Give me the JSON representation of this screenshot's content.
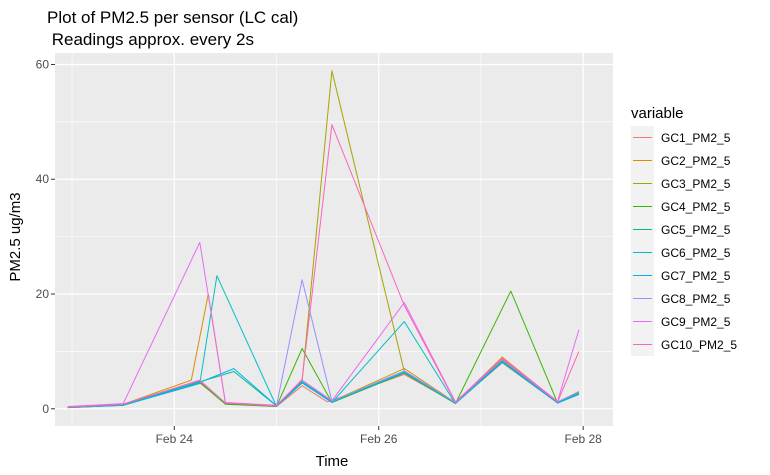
{
  "chart_data": {
    "type": "line",
    "title": "Plot of PM2.5 per sensor (LC cal)",
    "subtitle": " Readings approx. every 2s",
    "xlabel": "Time",
    "ylabel": "PM2.5 ug/m3",
    "xlim": [
      "2022-02-22T20:00",
      "2022-02-28T07:00"
    ],
    "ylim": [
      -3,
      62
    ],
    "x_ticks": [
      {
        "value": "2022-02-24T00:00",
        "label": "Feb 24"
      },
      {
        "value": "2022-02-26T00:00",
        "label": "Feb 26"
      },
      {
        "value": "2022-02-28T00:00",
        "label": "Feb 28"
      }
    ],
    "y_ticks": [
      {
        "value": 0,
        "label": "0"
      },
      {
        "value": 20,
        "label": "20"
      },
      {
        "value": 40,
        "label": "40"
      },
      {
        "value": 60,
        "label": "60"
      }
    ],
    "grid": true,
    "legend_title": "variable",
    "legend_position": "right",
    "series": [
      {
        "name": "GC1_PM2_5",
        "color": "#F8766D",
        "x": [
          "2022-02-22T23:00",
          "2022-02-23T12:00",
          "2022-02-24T06:00",
          "2022-02-24T12:00",
          "2022-02-25T00:00",
          "2022-02-25T06:00",
          "2022-02-25T12:00",
          "2022-02-26T06:00",
          "2022-02-26T18:00",
          "2022-02-27T05:00",
          "2022-02-27T18:00",
          "2022-02-27T23:00"
        ],
        "values": [
          0.2,
          0.6,
          4.5,
          1.0,
          0.4,
          4.0,
          1.2,
          6.0,
          1.0,
          8.0,
          1.0,
          2.5
        ]
      },
      {
        "name": "GC2_PM2_5",
        "color": "#D89000",
        "x": [
          "2022-02-22T23:00",
          "2022-02-23T12:00",
          "2022-02-24T04:00",
          "2022-02-24T08:00",
          "2022-02-24T12:00",
          "2022-02-25T00:00",
          "2022-02-25T06:00",
          "2022-02-25T13:00",
          "2022-02-26T06:00",
          "2022-02-26T18:00",
          "2022-02-27T05:00",
          "2022-02-27T18:00",
          "2022-02-27T23:00"
        ],
        "values": [
          0.3,
          0.8,
          5.0,
          20.0,
          1.0,
          0.5,
          5.0,
          1.3,
          7.0,
          1.1,
          9.0,
          1.2,
          3.0
        ]
      },
      {
        "name": "GC3_PM2_5",
        "color": "#A3A500",
        "x": [
          "2022-02-22T23:00",
          "2022-02-23T12:00",
          "2022-02-24T06:00",
          "2022-02-24T12:00",
          "2022-02-25T00:00",
          "2022-02-25T06:00",
          "2022-02-25T13:00",
          "2022-02-26T06:00",
          "2022-02-26T18:00",
          "2022-02-27T05:00",
          "2022-02-27T18:00",
          "2022-02-27T23:00"
        ],
        "values": [
          0.3,
          0.7,
          4.8,
          0.9,
          0.5,
          4.8,
          58.9,
          6.5,
          1.0,
          8.5,
          1.1,
          2.8
        ]
      },
      {
        "name": "GC4_PM2_5",
        "color": "#39B600",
        "x": [
          "2022-02-22T23:00",
          "2022-02-23T12:00",
          "2022-02-24T06:00",
          "2022-02-24T12:00",
          "2022-02-25T00:00",
          "2022-02-25T06:00",
          "2022-02-25T13:00",
          "2022-02-26T06:00",
          "2022-02-26T18:00",
          "2022-02-27T07:00",
          "2022-02-27T18:00",
          "2022-02-27T23:00"
        ],
        "values": [
          0.2,
          0.6,
          4.6,
          0.8,
          0.4,
          10.5,
          1.1,
          6.2,
          0.9,
          20.5,
          1.0,
          2.6
        ]
      },
      {
        "name": "GC5_PM2_5",
        "color": "#00BF7D",
        "x": [
          "2022-02-22T23:00",
          "2022-02-23T12:00",
          "2022-02-24T06:00",
          "2022-02-24T14:00",
          "2022-02-25T00:00",
          "2022-02-25T06:00",
          "2022-02-25T13:00",
          "2022-02-26T06:00",
          "2022-02-26T18:00",
          "2022-02-27T05:00",
          "2022-02-27T18:00",
          "2022-02-27T23:00"
        ],
        "values": [
          0.3,
          0.7,
          4.7,
          6.5,
          0.5,
          4.7,
          1.2,
          6.4,
          1.0,
          8.3,
          1.1,
          2.7
        ]
      },
      {
        "name": "GC6_PM2_5",
        "color": "#00BFC4",
        "x": [
          "2022-02-22T23:00",
          "2022-02-23T12:00",
          "2022-02-24T06:00",
          "2022-02-24T10:00",
          "2022-02-25T00:00",
          "2022-02-25T06:00",
          "2022-02-25T13:00",
          "2022-02-26T06:00",
          "2022-02-26T18:00",
          "2022-02-27T05:00",
          "2022-02-27T18:00",
          "2022-02-27T23:00"
        ],
        "values": [
          0.2,
          0.6,
          4.4,
          23.2,
          0.4,
          4.5,
          1.1,
          15.2,
          0.9,
          8.1,
          1.0,
          2.5
        ]
      },
      {
        "name": "GC7_PM2_5",
        "color": "#00B0F6",
        "x": [
          "2022-02-22T23:00",
          "2022-02-23T12:00",
          "2022-02-24T06:00",
          "2022-02-24T14:00",
          "2022-02-25T00:00",
          "2022-02-25T06:00",
          "2022-02-25T13:00",
          "2022-02-26T06:00",
          "2022-02-26T18:00",
          "2022-02-27T05:00",
          "2022-02-27T18:00",
          "2022-02-27T23:00"
        ],
        "values": [
          0.3,
          0.7,
          4.6,
          7.0,
          0.5,
          4.6,
          1.2,
          6.3,
          1.0,
          8.2,
          1.1,
          2.6
        ]
      },
      {
        "name": "GC8_PM2_5",
        "color": "#9590FF",
        "x": [
          "2022-02-22T23:00",
          "2022-02-23T12:00",
          "2022-02-24T06:00",
          "2022-02-24T12:00",
          "2022-02-25T00:00",
          "2022-02-25T06:00",
          "2022-02-25T13:00",
          "2022-02-26T06:00",
          "2022-02-26T18:00",
          "2022-02-27T05:00",
          "2022-02-27T18:00",
          "2022-02-27T23:00"
        ],
        "values": [
          0.3,
          0.8,
          4.9,
          1.0,
          0.5,
          22.5,
          1.3,
          6.6,
          1.1,
          8.6,
          1.2,
          2.9
        ]
      },
      {
        "name": "GC9_PM2_5",
        "color": "#E76BF3",
        "x": [
          "2022-02-22T23:00",
          "2022-02-23T12:00",
          "2022-02-24T06:00",
          "2022-02-24T12:00",
          "2022-02-25T00:00",
          "2022-02-25T06:00",
          "2022-02-25T13:00",
          "2022-02-26T06:00",
          "2022-02-26T18:00",
          "2022-02-27T05:00",
          "2022-02-27T18:00",
          "2022-02-27T23:00"
        ],
        "values": [
          0.4,
          0.9,
          29.0,
          1.1,
          0.6,
          5.0,
          1.4,
          18.5,
          1.2,
          8.8,
          1.3,
          13.8
        ]
      },
      {
        "name": "GC10_PM2_5",
        "color": "#FF62BC",
        "x": [
          "2022-02-22T23:00",
          "2022-02-23T12:00",
          "2022-02-24T06:00",
          "2022-02-24T12:00",
          "2022-02-25T00:00",
          "2022-02-25T06:00",
          "2022-02-25T13:00",
          "2022-02-26T06:00",
          "2022-02-26T18:00",
          "2022-02-27T05:00",
          "2022-02-27T18:00",
          "2022-02-27T23:00"
        ],
        "values": [
          0.3,
          0.8,
          5.0,
          1.0,
          0.5,
          5.1,
          49.5,
          18.0,
          1.1,
          8.7,
          1.2,
          10.0
        ]
      }
    ]
  }
}
